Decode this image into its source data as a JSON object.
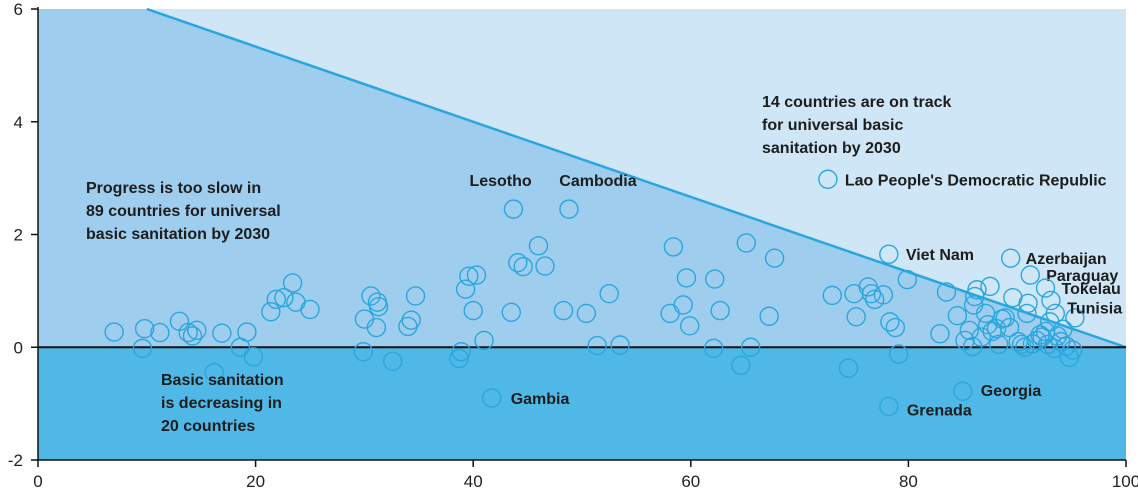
{
  "chart_data": {
    "type": "scatter",
    "xlim": [
      0,
      100
    ],
    "ylim": [
      -2,
      6
    ],
    "x_ticks": [
      0,
      20,
      40,
      60,
      80,
      100
    ],
    "y_ticks": [
      -2,
      0,
      2,
      4,
      6
    ],
    "grid": false,
    "colors": {
      "slow_region": "#9fcdee",
      "on_track_region": "#cfe6f7",
      "decreasing_region": "#4fb8e6",
      "marker": "#2aa6df",
      "on_track_line": "#2aa6df",
      "zero_line": "#111111"
    },
    "on_track_line": [
      [
        10,
        6
      ],
      [
        100,
        0
      ]
    ],
    "annotations": {
      "on_track": [
        "14 countries are on track",
        "for universal basic",
        "sanitation by 2030"
      ],
      "too_slow": [
        "Progress is too slow in",
        "89 countries for universal",
        "basic sanitation by 2030"
      ],
      "decreasing": [
        "Basic sanitation",
        "is decreasing in",
        "20 countries"
      ]
    },
    "labeled_points": [
      {
        "label": "Lesotho",
        "x": 43.7,
        "y": 2.45
      },
      {
        "label": "Cambodia",
        "x": 48.8,
        "y": 2.45
      },
      {
        "label": "Lao People's Democratic Republic",
        "x": 72.6,
        "y": 2.98
      },
      {
        "label": "Viet Nam",
        "x": 78.2,
        "y": 1.65
      },
      {
        "label": "Azerbaijan",
        "x": 89.4,
        "y": 1.58
      },
      {
        "label": "Paraguay",
        "x": 91.2,
        "y": 1.28
      },
      {
        "label": "Tokelau",
        "x": 92.6,
        "y": 1.05
      },
      {
        "label": "Tunisia",
        "x": 93.5,
        "y": 0.6
      },
      {
        "label": "Gambia",
        "x": 41.7,
        "y": -0.9
      },
      {
        "label": "Georgia",
        "x": 85.0,
        "y": -0.78
      },
      {
        "label": "Grenada",
        "x": 78.2,
        "y": -1.05
      }
    ],
    "points": [
      [
        7,
        0.27
      ],
      [
        9.6,
        -0.02
      ],
      [
        9.8,
        0.33
      ],
      [
        11.2,
        0.26
      ],
      [
        13,
        0.46
      ],
      [
        13.8,
        0.26
      ],
      [
        14.2,
        0.2
      ],
      [
        14.6,
        0.3
      ],
      [
        16.2,
        -0.45
      ],
      [
        16.9,
        0.25
      ],
      [
        18.6,
        0.0
      ],
      [
        19.2,
        0.27
      ],
      [
        19.8,
        -0.17
      ],
      [
        21.4,
        0.63
      ],
      [
        21.9,
        0.85
      ],
      [
        22.6,
        0.88
      ],
      [
        23.4,
        1.14
      ],
      [
        23.7,
        0.8
      ],
      [
        25,
        0.67
      ],
      [
        29.9,
        -0.08
      ],
      [
        30,
        0.5
      ],
      [
        30.6,
        0.91
      ],
      [
        31.1,
        0.35
      ],
      [
        31.2,
        0.8
      ],
      [
        31.3,
        0.72
      ],
      [
        32.6,
        -0.25
      ],
      [
        34,
        0.37
      ],
      [
        34.3,
        0.48
      ],
      [
        34.7,
        0.91
      ],
      [
        38.7,
        -0.2
      ],
      [
        38.9,
        -0.08
      ],
      [
        39.3,
        1.03
      ],
      [
        39.6,
        1.26
      ],
      [
        40,
        0.65
      ],
      [
        40.3,
        1.28
      ],
      [
        41,
        0.12
      ],
      [
        43.5,
        0.62
      ],
      [
        44.1,
        1.5
      ],
      [
        44.6,
        1.43
      ],
      [
        46,
        1.8
      ],
      [
        46.6,
        1.44
      ],
      [
        48.3,
        0.65
      ],
      [
        50.4,
        0.6
      ],
      [
        51.4,
        0.03
      ],
      [
        52.5,
        0.95
      ],
      [
        53.5,
        0.04
      ],
      [
        58.1,
        0.6
      ],
      [
        58.4,
        1.78
      ],
      [
        59.3,
        0.75
      ],
      [
        59.6,
        1.23
      ],
      [
        59.9,
        0.38
      ],
      [
        62.1,
        -0.02
      ],
      [
        62.2,
        1.21
      ],
      [
        62.7,
        0.65
      ],
      [
        64.6,
        -0.32
      ],
      [
        65.1,
        1.85
      ],
      [
        65.5,
        0.0
      ],
      [
        67.2,
        0.55
      ],
      [
        67.7,
        1.58
      ],
      [
        73,
        0.92
      ],
      [
        74.5,
        -0.37
      ],
      [
        75,
        0.95
      ],
      [
        75.2,
        0.54
      ],
      [
        76.3,
        1.07
      ],
      [
        76.6,
        0.95
      ],
      [
        76.9,
        0.85
      ],
      [
        77.7,
        0.93
      ],
      [
        78.3,
        0.45
      ],
      [
        78.8,
        0.35
      ],
      [
        79.1,
        -0.12
      ],
      [
        79.9,
        1.2
      ],
      [
        82.9,
        0.24
      ],
      [
        83.5,
        0.98
      ],
      [
        84.5,
        0.56
      ],
      [
        85.2,
        0.12
      ],
      [
        85.6,
        0.3
      ],
      [
        85.9,
        0.01
      ],
      [
        86,
        0.75
      ],
      [
        86.1,
        0.9
      ],
      [
        86.3,
        1.02
      ],
      [
        86.7,
        0.18
      ],
      [
        87.1,
        0.6
      ],
      [
        87.3,
        0.4
      ],
      [
        87.5,
        1.08
      ],
      [
        87.7,
        0.28
      ],
      [
        88.1,
        0.33
      ],
      [
        88.3,
        0.05
      ],
      [
        88.6,
        0.5
      ],
      [
        88.9,
        0.52
      ],
      [
        89.3,
        0.35
      ],
      [
        89.6,
        0.88
      ],
      [
        90.1,
        0.1
      ],
      [
        90.4,
        0.05
      ],
      [
        90.7,
        0.0
      ],
      [
        90.9,
        0.6
      ],
      [
        91,
        0.78
      ],
      [
        91.4,
        0.06
      ],
      [
        91.8,
        0.12
      ],
      [
        92.1,
        0.22
      ],
      [
        92.3,
        0.18
      ],
      [
        92.6,
        0.28
      ],
      [
        92.8,
        0.05
      ],
      [
        93,
        0.45
      ],
      [
        93.1,
        0.83
      ],
      [
        93.4,
        -0.02
      ],
      [
        93.7,
        0.2
      ],
      [
        94,
        0.1
      ],
      [
        94.2,
        0.32
      ],
      [
        94.5,
        0.02
      ],
      [
        94.8,
        -0.18
      ],
      [
        95.1,
        -0.05
      ],
      [
        95.3,
        0.52
      ]
    ]
  }
}
